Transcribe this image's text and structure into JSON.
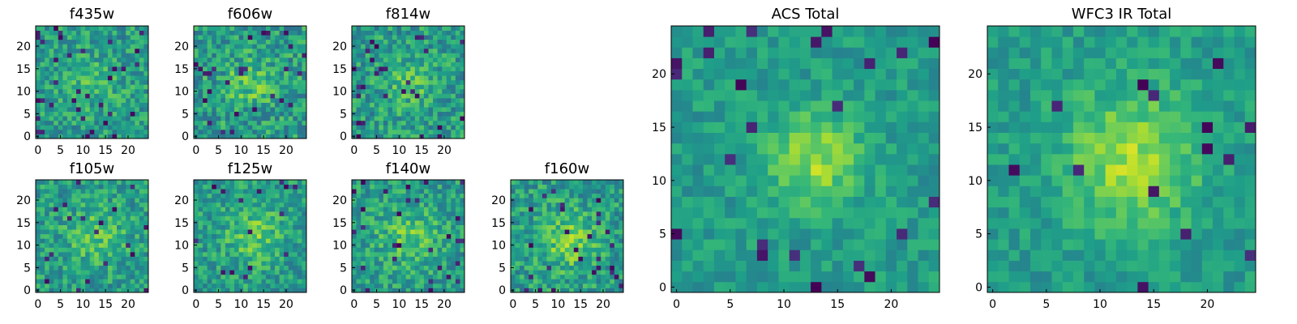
{
  "figure": {
    "colormap": "viridis",
    "colors": {
      "low": "#440154",
      "mid": "#21918c",
      "high": "#fde725",
      "frame": "#000000",
      "background": "#ffffff"
    }
  },
  "chart_data": [
    {
      "type": "heatmap",
      "title": "f435w",
      "size": 25,
      "xlim": [
        0,
        24
      ],
      "ylim": [
        0,
        24
      ],
      "xticks": [
        "0",
        "5",
        "10",
        "15",
        "20"
      ],
      "yticks": [
        "0",
        "5",
        "10",
        "15",
        "20"
      ],
      "seed": 11,
      "peak": [
        12,
        12
      ],
      "peak_strength": 0.12,
      "peak_width": 4.0,
      "noise": 0.4,
      "spread": 0.45,
      "dark_spots": 0.05
    },
    {
      "type": "heatmap",
      "title": "f606w",
      "size": 25,
      "xlim": [
        0,
        24
      ],
      "ylim": [
        0,
        24
      ],
      "xticks": [
        "0",
        "5",
        "10",
        "15",
        "20"
      ],
      "yticks": [
        "0",
        "5",
        "10",
        "15",
        "20"
      ],
      "seed": 23,
      "peak": [
        12,
        12
      ],
      "peak_strength": 0.2,
      "peak_width": 3.5,
      "noise": 0.4,
      "spread": 0.5,
      "dark_spots": 0.04
    },
    {
      "type": "heatmap",
      "title": "f814w",
      "size": 25,
      "xlim": [
        0,
        24
      ],
      "ylim": [
        0,
        24
      ],
      "xticks": [
        "0",
        "5",
        "10",
        "15",
        "20"
      ],
      "yticks": [
        "0",
        "5",
        "10",
        "15",
        "20"
      ],
      "seed": 37,
      "peak": [
        12,
        12
      ],
      "peak_strength": 0.16,
      "peak_width": 3.8,
      "noise": 0.4,
      "spread": 0.47,
      "dark_spots": 0.05
    },
    {
      "type": "heatmap",
      "title": "f105w",
      "size": 25,
      "xlim": [
        0,
        24
      ],
      "ylim": [
        0,
        24
      ],
      "xticks": [
        "0",
        "5",
        "10",
        "15",
        "20"
      ],
      "yticks": [
        "0",
        "5",
        "10",
        "15",
        "20"
      ],
      "seed": 41,
      "peak": [
        13,
        12
      ],
      "peak_strength": 0.18,
      "peak_width": 4.5,
      "noise": 0.38,
      "spread": 0.45,
      "dark_spots": 0.04
    },
    {
      "type": "heatmap",
      "title": "f125w",
      "size": 25,
      "xlim": [
        0,
        24
      ],
      "ylim": [
        0,
        24
      ],
      "xticks": [
        "0",
        "5",
        "10",
        "15",
        "20"
      ],
      "yticks": [
        "0",
        "5",
        "10",
        "15",
        "20"
      ],
      "seed": 53,
      "peak": [
        13,
        12
      ],
      "peak_strength": 0.2,
      "peak_width": 4.5,
      "noise": 0.38,
      "spread": 0.45,
      "dark_spots": 0.03
    },
    {
      "type": "heatmap",
      "title": "f140w",
      "size": 25,
      "xlim": [
        0,
        24
      ],
      "ylim": [
        0,
        24
      ],
      "xticks": [
        "0",
        "5",
        "10",
        "15",
        "20"
      ],
      "yticks": [
        "0",
        "5",
        "10",
        "15",
        "20"
      ],
      "seed": 67,
      "peak": [
        12,
        12
      ],
      "peak_strength": 0.18,
      "peak_width": 5.0,
      "noise": 0.38,
      "spread": 0.45,
      "dark_spots": 0.04
    },
    {
      "type": "heatmap",
      "title": "f160w",
      "size": 25,
      "xlim": [
        0,
        24
      ],
      "ylim": [
        0,
        24
      ],
      "xticks": [
        "0",
        "5",
        "10",
        "15",
        "20"
      ],
      "yticks": [
        "0",
        "5",
        "10",
        "15",
        "20"
      ],
      "seed": 79,
      "peak": [
        12,
        11
      ],
      "peak_strength": 0.22,
      "peak_width": 4.5,
      "noise": 0.38,
      "spread": 0.48,
      "dark_spots": 0.05
    },
    {
      "type": "heatmap",
      "title": "ACS Total",
      "size": 25,
      "xlim": [
        0,
        24
      ],
      "ylim": [
        0,
        24
      ],
      "xticks": [
        "0",
        "5",
        "10",
        "15",
        "20"
      ],
      "yticks": [
        "0",
        "5",
        "10",
        "15",
        "20"
      ],
      "seed": 97,
      "peak": [
        13,
        12
      ],
      "peak_strength": 0.3,
      "peak_width": 3.0,
      "noise": 0.36,
      "spread": 0.3,
      "dark_spots": 0.04
    },
    {
      "type": "heatmap",
      "title": "WFC3 IR Total",
      "size": 25,
      "xlim": [
        0,
        24
      ],
      "ylim": [
        0,
        24
      ],
      "xticks": [
        "0",
        "5",
        "10",
        "15",
        "20"
      ],
      "yticks": [
        "0",
        "5",
        "10",
        "15",
        "20"
      ],
      "seed": 131,
      "peak": [
        13,
        12
      ],
      "peak_strength": 0.3,
      "peak_width": 4.5,
      "noise": 0.38,
      "spread": 0.28,
      "dark_spots": 0.03
    }
  ]
}
